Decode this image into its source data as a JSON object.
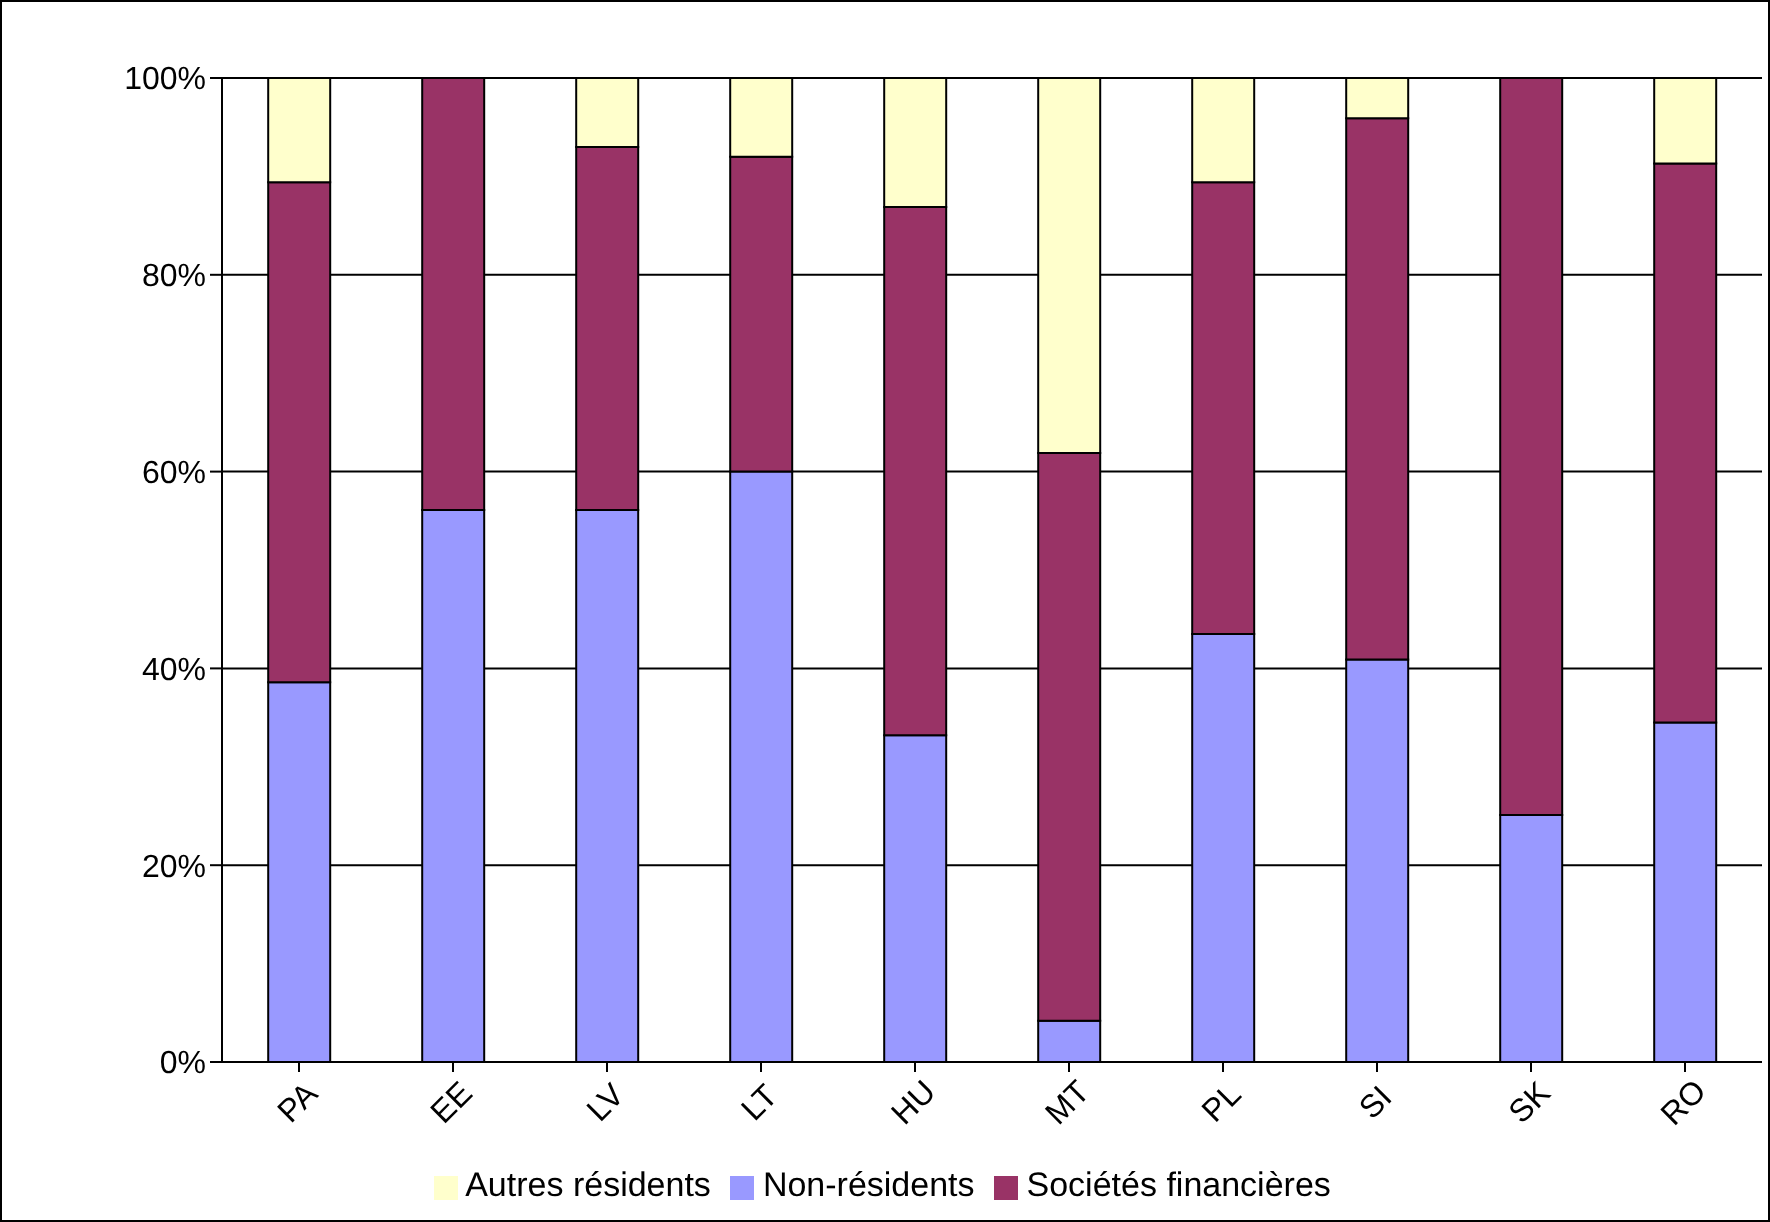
{
  "chart_data": {
    "type": "bar",
    "stacked": true,
    "categories": [
      "PA",
      "EE",
      "LV",
      "LT",
      "HU",
      "MT",
      "PL",
      "SI",
      "SK",
      "RO"
    ],
    "series": [
      {
        "name": "Non-résidents",
        "color": "#9999ff",
        "values": [
          38.6,
          56.1,
          56.1,
          60.0,
          33.2,
          4.2,
          43.5,
          40.9,
          25.1,
          34.5
        ]
      },
      {
        "name": "Sociétés financières",
        "color": "#993366",
        "values": [
          50.8,
          43.9,
          36.9,
          32.0,
          53.7,
          57.7,
          45.9,
          55.0,
          74.9,
          56.8
        ]
      },
      {
        "name": "Autres résidents",
        "color": "#ffffcc",
        "values": [
          10.6,
          0,
          7.0,
          8.0,
          13.1,
          38.1,
          10.6,
          4.1,
          0,
          8.7
        ]
      }
    ],
    "ylim": [
      0,
      100
    ],
    "yticks": [
      {
        "value": 0,
        "label": "0%"
      },
      {
        "value": 20,
        "label": "20%"
      },
      {
        "value": 40,
        "label": "40%"
      },
      {
        "value": 60,
        "label": "60%"
      },
      {
        "value": 80,
        "label": "80%"
      },
      {
        "value": 100,
        "label": "100%"
      }
    ],
    "grid": "y",
    "legend": "bottom"
  }
}
